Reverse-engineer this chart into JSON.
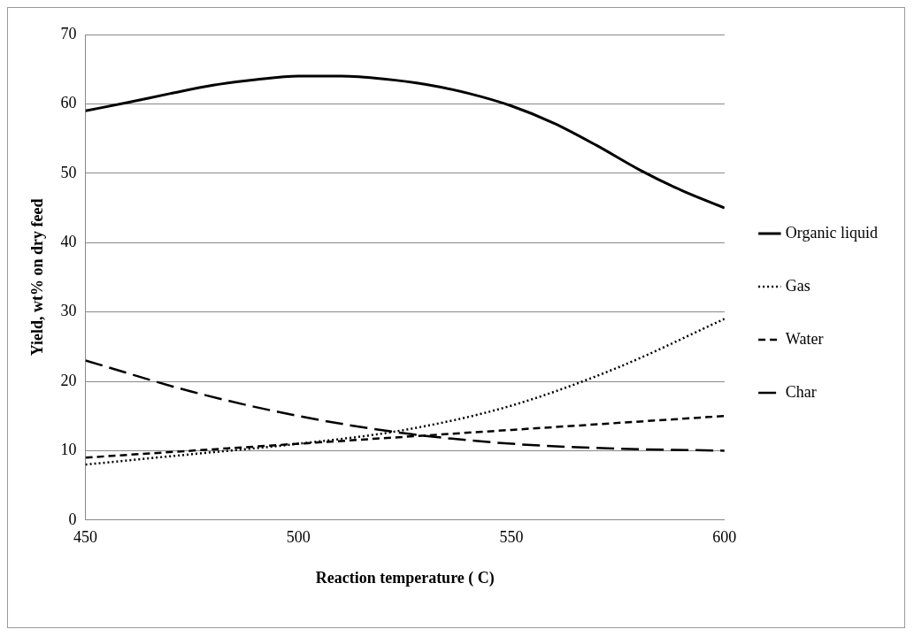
{
  "chart_data": {
    "type": "line",
    "xlabel": "Reaction temperature ( C)",
    "ylabel": "Yield, wt% on dry feed",
    "xlim": [
      450,
      600
    ],
    "xticks": [
      450,
      500,
      550,
      600
    ],
    "ylim": [
      0,
      70
    ],
    "yticks": [
      0,
      10,
      20,
      30,
      40,
      50,
      60,
      70
    ],
    "grid": "y",
    "legend": "right",
    "marker": "none",
    "series": [
      {
        "name": "Organic liquid",
        "color": "#000000",
        "line_style": "solid",
        "x": [
          450,
          460,
          470,
          480,
          490,
          500,
          510,
          520,
          530,
          540,
          550,
          560,
          570,
          580,
          590,
          600
        ],
        "values": [
          59,
          60.2,
          61.5,
          62.7,
          63.5,
          64,
          64,
          63.6,
          62.8,
          61.5,
          59.7,
          57.2,
          54,
          50.5,
          47.5,
          45
        ]
      },
      {
        "name": "Gas",
        "color": "#000000",
        "line_style": "dotted",
        "x": [
          450,
          475,
          500,
          525,
          550,
          575,
          600
        ],
        "values": [
          8,
          9.5,
          11,
          13,
          16.5,
          22,
          29
        ]
      },
      {
        "name": "Water",
        "color": "#000000",
        "line_style": "dashed",
        "x": [
          450,
          500,
          550,
          600
        ],
        "values": [
          9,
          11,
          13,
          15
        ]
      },
      {
        "name": "Char",
        "color": "#000000",
        "line_style": "longdash",
        "x": [
          450,
          475,
          500,
          525,
          550,
          575,
          600
        ],
        "values": [
          23,
          18.5,
          15,
          12.5,
          11,
          10.3,
          10
        ]
      }
    ]
  }
}
